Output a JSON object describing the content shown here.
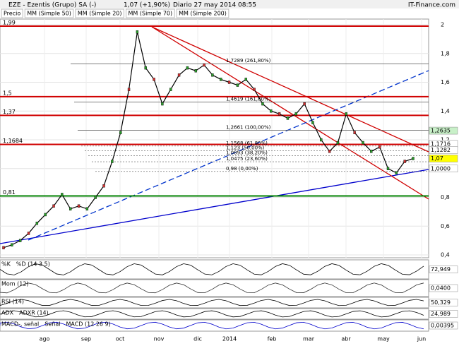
{
  "header": {
    "title": "EZE - Ezentis (Grupo) SA (-)",
    "quote": "1,07 (+1,90%)",
    "period": "Diario 27 may 2014 08:55",
    "site": "IT-Finance.com"
  },
  "legend": [
    "Precio",
    "MM (Simple 50)",
    "MM (Simple 20)",
    "MM (Simple 70)",
    "MM (Simple 200)"
  ],
  "chart_data": {
    "type": "line",
    "series": [
      {
        "name": "Precio",
        "color": "#000000",
        "values": [
          0.45,
          0.47,
          0.5,
          0.55,
          0.62,
          0.68,
          0.74,
          0.82,
          0.72,
          0.74,
          0.72,
          0.8,
          0.88,
          1.05,
          1.25,
          1.55,
          1.95,
          1.7,
          1.62,
          1.45,
          1.55,
          1.65,
          1.7,
          1.68,
          1.72,
          1.65,
          1.62,
          1.6,
          1.58,
          1.62,
          1.55,
          1.45,
          1.4,
          1.38,
          1.35,
          1.38,
          1.45,
          1.32,
          1.2,
          1.12,
          1.18,
          1.38,
          1.25,
          1.18,
          1.12,
          1.15,
          1.0,
          0.97,
          1.05,
          1.07
        ]
      }
    ],
    "x_labels": [
      "ago",
      "sep",
      "oct",
      "nov",
      "dic",
      "2014",
      "feb",
      "mar",
      "abr",
      "may",
      "jun"
    ],
    "ylim": [
      0.4,
      2
    ],
    "yticks": [
      {
        "value": 0.4,
        "label": "0,4"
      },
      {
        "value": 0.6,
        "label": "0,6"
      },
      {
        "value": 0.8,
        "label": "0,8"
      },
      {
        "value": 1,
        "label": "1"
      },
      {
        "value": 1.2,
        "label": "1,2"
      },
      {
        "value": 1.4,
        "label": "1,4"
      },
      {
        "value": 1.6,
        "label": "1,6"
      },
      {
        "value": 1.8,
        "label": "1,8"
      },
      {
        "value": 2,
        "label": "2"
      }
    ],
    "levels": [
      {
        "value": 1.99,
        "label": "1,99",
        "color": "#d00000"
      },
      {
        "value": 1.5,
        "label": "1,5",
        "color": "#d00000"
      },
      {
        "value": 1.37,
        "label": "1,37",
        "color": "#d00000"
      },
      {
        "value": 1.1684,
        "label": "1,1684",
        "color": "#d00000"
      },
      {
        "value": 0.81,
        "label": "0,81",
        "color": "#008000"
      }
    ],
    "fib_levels": [
      {
        "value": 1.7289,
        "label": "1,7289 (261,80%)"
      },
      {
        "value": 1.4619,
        "label": "1,4619 (161,80%)"
      },
      {
        "value": 1.2661,
        "label": "1,2661 (100,00%)"
      },
      {
        "value": 1.1568,
        "label": "1,1568 (61,80%)"
      },
      {
        "value": 1.123,
        "label": "1,123 (50,00%)"
      },
      {
        "value": 1.0893,
        "label": "1,0893 (38,20%)"
      },
      {
        "value": 1.0475,
        "label": "1,0475 (23,60%)"
      },
      {
        "value": 0.98,
        "label": "0,98 (0,00%)"
      }
    ],
    "price_labels": [
      {
        "value": 1.2635,
        "label": "1,2635",
        "color": "#c8f0c8"
      },
      {
        "value": 1.1716,
        "label": "1,1716",
        "color": "#ffffff"
      },
      {
        "value": 1.1282,
        "label": "1,1282",
        "color": "#ffffff"
      },
      {
        "value": 1.07,
        "label": "1,07",
        "color": "#ffff00"
      },
      {
        "value": 1.0,
        "label": "1,0000",
        "color": "#ffffff"
      }
    ]
  },
  "panels": [
    {
      "labels": [
        "%K",
        "%D (14 3 5)"
      ],
      "value": "72,949"
    },
    {
      "labels": [
        "Mom (12)"
      ],
      "value": "0,0400"
    },
    {
      "labels": [
        "RSI (14)"
      ],
      "value": "50,329"
    },
    {
      "labels": [
        "ADX",
        "ADXR (14)"
      ],
      "value": "24,989"
    },
    {
      "labels": [
        "MACD-, señal",
        "Señal",
        "MACD (12 26 9)"
      ],
      "value": "0,00395"
    }
  ]
}
